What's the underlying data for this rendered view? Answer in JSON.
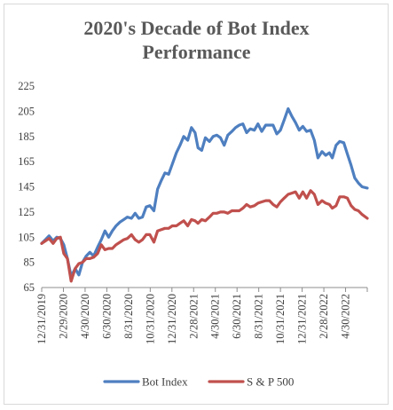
{
  "chart_data": {
    "type": "line",
    "title": "2020's Decade of Bot Index Performance",
    "title_lines": [
      "2020's Decade of Bot Index",
      "Performance"
    ],
    "xlabel": "",
    "ylabel": "",
    "ylim": [
      65,
      225
    ],
    "yticks": [
      65,
      85,
      105,
      125,
      145,
      165,
      185,
      205,
      225
    ],
    "x_tick_labels": [
      "12/31/2019",
      "2/29/2020",
      "4/30/2020",
      "6/30/2020",
      "8/31/2020",
      "10/31/2020",
      "12/31/2020",
      "2/28/2021",
      "4/30/2021",
      "6/30/2021",
      "8/31/2021",
      "10/31/2021",
      "12/31/2021",
      "2/28/2022",
      "4/30/2022"
    ],
    "x_range": [
      "12/31/2019",
      "6/3/2022"
    ],
    "grid": false,
    "legend_position": "bottom",
    "series": [
      {
        "name": "Bot Index",
        "color": "#4e7fc0",
        "points": [
          [
            "12/31/2019",
            100
          ],
          [
            "1/10/2020",
            103
          ],
          [
            "1/20/2020",
            106
          ],
          [
            "1/31/2020",
            102
          ],
          [
            "2/10/2020",
            105
          ],
          [
            "2/20/2020",
            104
          ],
          [
            "2/29/2020",
            99
          ],
          [
            "3/10/2020",
            88
          ],
          [
            "3/20/2020",
            74
          ],
          [
            "3/31/2020",
            80
          ],
          [
            "4/10/2020",
            75
          ],
          [
            "4/20/2020",
            85
          ],
          [
            "4/30/2020",
            90
          ],
          [
            "5/10/2020",
            93
          ],
          [
            "5/20/2020",
            90
          ],
          [
            "5/31/2020",
            97
          ],
          [
            "6/10/2020",
            103
          ],
          [
            "6/20/2020",
            110
          ],
          [
            "6/30/2020",
            105
          ],
          [
            "7/10/2020",
            110
          ],
          [
            "7/20/2020",
            114
          ],
          [
            "7/31/2020",
            117
          ],
          [
            "8/10/2020",
            119
          ],
          [
            "8/20/2020",
            121
          ],
          [
            "8/31/2020",
            120
          ],
          [
            "9/10/2020",
            124
          ],
          [
            "9/20/2020",
            120
          ],
          [
            "9/30/2020",
            121
          ],
          [
            "10/10/2020",
            129
          ],
          [
            "10/20/2020",
            130
          ],
          [
            "10/31/2020",
            126
          ],
          [
            "11/10/2020",
            143
          ],
          [
            "11/20/2020",
            150
          ],
          [
            "11/30/2020",
            156
          ],
          [
            "12/10/2020",
            155
          ],
          [
            "12/20/2020",
            163
          ],
          [
            "12/31/2020",
            172
          ],
          [
            "1/10/2021",
            178
          ],
          [
            "1/20/2021",
            185
          ],
          [
            "1/31/2021",
            182
          ],
          [
            "2/10/2021",
            192
          ],
          [
            "2/20/2021",
            188
          ],
          [
            "2/28/2021",
            176
          ],
          [
            "3/10/2021",
            174
          ],
          [
            "3/20/2021",
            184
          ],
          [
            "3/31/2021",
            181
          ],
          [
            "4/10/2021",
            185
          ],
          [
            "4/20/2021",
            186
          ],
          [
            "4/30/2021",
            184
          ],
          [
            "5/10/2021",
            178
          ],
          [
            "5/20/2021",
            186
          ],
          [
            "5/31/2021",
            189
          ],
          [
            "6/10/2021",
            192
          ],
          [
            "6/20/2021",
            194
          ],
          [
            "6/30/2021",
            195
          ],
          [
            "7/10/2021",
            188
          ],
          [
            "7/20/2021",
            191
          ],
          [
            "7/31/2021",
            190
          ],
          [
            "8/10/2021",
            195
          ],
          [
            "8/20/2021",
            189
          ],
          [
            "8/31/2021",
            194
          ],
          [
            "9/10/2021",
            194
          ],
          [
            "9/20/2021",
            194
          ],
          [
            "9/30/2021",
            187
          ],
          [
            "10/10/2021",
            190
          ],
          [
            "10/20/2021",
            198
          ],
          [
            "10/31/2021",
            207
          ],
          [
            "11/10/2021",
            201
          ],
          [
            "11/20/2021",
            196
          ],
          [
            "11/30/2021",
            190
          ],
          [
            "12/10/2021",
            193
          ],
          [
            "12/20/2021",
            189
          ],
          [
            "12/31/2021",
            190
          ],
          [
            "1/10/2022",
            182
          ],
          [
            "1/20/2022",
            168
          ],
          [
            "1/31/2022",
            173
          ],
          [
            "2/10/2022",
            170
          ],
          [
            "2/20/2022",
            172
          ],
          [
            "2/28/2022",
            168
          ],
          [
            "3/10/2022",
            178
          ],
          [
            "3/20/2022",
            181
          ],
          [
            "3/31/2022",
            180
          ],
          [
            "4/10/2022",
            171
          ],
          [
            "4/20/2022",
            162
          ],
          [
            "4/30/2022",
            152
          ],
          [
            "5/10/2022",
            148
          ],
          [
            "5/20/2022",
            145
          ],
          [
            "6/3/2022",
            144
          ]
        ]
      },
      {
        "name": "S & P 500",
        "color": "#c0504d",
        "points": [
          [
            "12/31/2019",
            100
          ],
          [
            "1/10/2020",
            102
          ],
          [
            "1/20/2020",
            104
          ],
          [
            "1/31/2020",
            100
          ],
          [
            "2/10/2020",
            104
          ],
          [
            "2/20/2020",
            105
          ],
          [
            "2/29/2020",
            92
          ],
          [
            "3/10/2020",
            88
          ],
          [
            "3/20/2020",
            70
          ],
          [
            "3/31/2020",
            80
          ],
          [
            "4/10/2020",
            84
          ],
          [
            "4/20/2020",
            85
          ],
          [
            "4/30/2020",
            88
          ],
          [
            "5/10/2020",
            88
          ],
          [
            "5/20/2020",
            89
          ],
          [
            "5/31/2020",
            92
          ],
          [
            "6/10/2020",
            99
          ],
          [
            "6/20/2020",
            95
          ],
          [
            "6/30/2020",
            96
          ],
          [
            "7/10/2020",
            96
          ],
          [
            "7/20/2020",
            99
          ],
          [
            "7/31/2020",
            101
          ],
          [
            "8/10/2020",
            103
          ],
          [
            "8/20/2020",
            104
          ],
          [
            "8/31/2020",
            107
          ],
          [
            "9/10/2020",
            103
          ],
          [
            "9/20/2020",
            101
          ],
          [
            "9/30/2020",
            103
          ],
          [
            "10/10/2020",
            107
          ],
          [
            "10/20/2020",
            107
          ],
          [
            "10/31/2020",
            101
          ],
          [
            "11/10/2020",
            110
          ],
          [
            "11/20/2020",
            111
          ],
          [
            "11/30/2020",
            112
          ],
          [
            "12/10/2020",
            112
          ],
          [
            "12/20/2020",
            114
          ],
          [
            "12/31/2020",
            114
          ],
          [
            "1/10/2021",
            116
          ],
          [
            "1/20/2021",
            118
          ],
          [
            "1/31/2021",
            114
          ],
          [
            "2/10/2021",
            119
          ],
          [
            "2/20/2021",
            118
          ],
          [
            "2/28/2021",
            116
          ],
          [
            "3/10/2021",
            119
          ],
          [
            "3/20/2021",
            118
          ],
          [
            "3/31/2021",
            121
          ],
          [
            "4/10/2021",
            124
          ],
          [
            "4/20/2021",
            124
          ],
          [
            "4/30/2021",
            125
          ],
          [
            "5/10/2021",
            125
          ],
          [
            "5/20/2021",
            124
          ],
          [
            "5/31/2021",
            126
          ],
          [
            "6/10/2021",
            126
          ],
          [
            "6/20/2021",
            126
          ],
          [
            "6/30/2021",
            128
          ],
          [
            "7/10/2021",
            131
          ],
          [
            "7/20/2021",
            129
          ],
          [
            "7/31/2021",
            130
          ],
          [
            "8/10/2021",
            132
          ],
          [
            "8/20/2021",
            133
          ],
          [
            "8/31/2021",
            134
          ],
          [
            "9/10/2021",
            134
          ],
          [
            "9/20/2021",
            131
          ],
          [
            "9/30/2021",
            129
          ],
          [
            "10/10/2021",
            133
          ],
          [
            "10/20/2021",
            136
          ],
          [
            "10/31/2021",
            139
          ],
          [
            "11/10/2021",
            140
          ],
          [
            "11/20/2021",
            141
          ],
          [
            "11/30/2021",
            136
          ],
          [
            "12/10/2021",
            141
          ],
          [
            "12/20/2021",
            136
          ],
          [
            "12/31/2021",
            142
          ],
          [
            "1/10/2022",
            139
          ],
          [
            "1/20/2022",
            131
          ],
          [
            "1/31/2022",
            134
          ],
          [
            "2/10/2022",
            132
          ],
          [
            "2/20/2022",
            131
          ],
          [
            "2/28/2022",
            128
          ],
          [
            "3/10/2022",
            130
          ],
          [
            "3/20/2022",
            137
          ],
          [
            "3/31/2022",
            137
          ],
          [
            "4/10/2022",
            136
          ],
          [
            "4/20/2022",
            130
          ],
          [
            "4/30/2022",
            127
          ],
          [
            "5/10/2022",
            126
          ],
          [
            "5/20/2022",
            123
          ],
          [
            "6/3/2022",
            120
          ]
        ]
      }
    ]
  }
}
